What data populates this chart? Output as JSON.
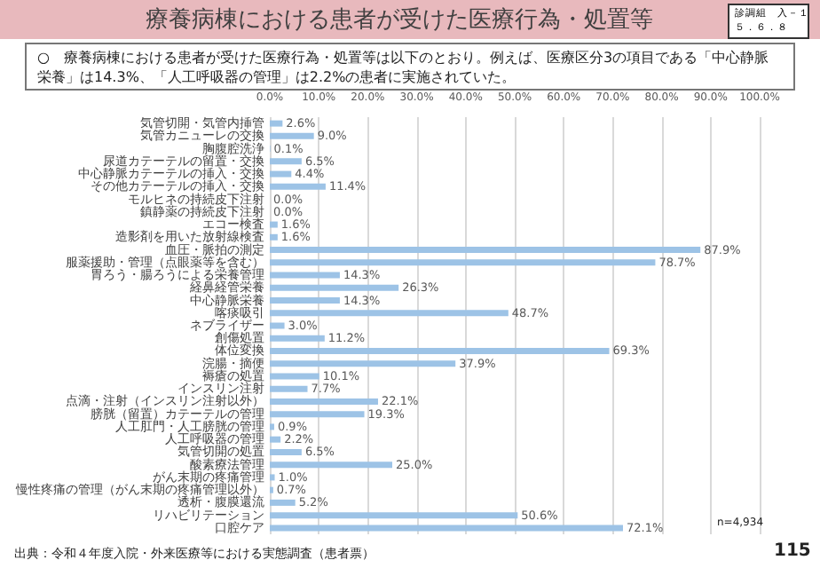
{
  "chart_data": {
    "type": "bar",
    "orientation": "horizontal",
    "title": "療養病棟における患者が受けた医療行為・処置等",
    "annotations": [
      "診調組　入－１",
      "５．６．８",
      "○　療養病棟における患者が受けた医療行為・処置等は以下のとおり。例えば、医療区分3の項目である「中心静脈栄養」は14.3%、「人工呼吸器の管理」は2.2%の患者に実施されていた。",
      "出典：令和４年度入院・外来医療等における実態調査（患者票）",
      "n=4,934",
      "115"
    ],
    "categories": [
      "気管切開・気管内挿管",
      "気管カニューレの交換",
      "胸腹腔洗浄",
      "尿道カテーテルの留置・交換",
      "中心静脈カテーテルの挿入・交換",
      "その他カテーテルの挿入・交換",
      "モルヒネの持続皮下注射",
      "鎮静薬の持続皮下注射",
      "エコー検査",
      "造影剤を用いた放射線検査",
      "血圧・脈拍の測定",
      "服薬援助・管理（点眼薬等を含む）",
      "胃ろう・腸ろうによる栄養管理",
      "経鼻経管栄養",
      "中心静脈栄養",
      "喀痰吸引",
      "ネブライザー",
      "創傷処置",
      "体位変換",
      "浣腸・摘便",
      "褥瘡の処置",
      "インスリン注射",
      "点滴・注射（インスリン注射以外）",
      "膀胱（留置）カテーテルの管理",
      "人工肛門・人工膀胱の管理",
      "人工呼吸器の管理",
      "気管切開の処置",
      "酸素療法管理",
      "がん末期の疼痛管理",
      "慢性疼痛の管理（がん末期の疼痛管理以外）",
      "透析・腹膜還流",
      "リハビリテーション",
      "口腔ケア"
    ],
    "values": [
      2.6,
      9.0,
      0.1,
      6.5,
      4.4,
      11.4,
      0.0,
      0.0,
      1.6,
      1.6,
      87.9,
      78.7,
      14.3,
      26.3,
      14.3,
      48.7,
      3.0,
      11.2,
      69.3,
      37.9,
      10.1,
      7.7,
      22.1,
      19.3,
      0.9,
      2.2,
      6.5,
      25.0,
      1.0,
      0.7,
      5.2,
      50.6,
      72.1
    ],
    "value_labels": [
      "2.6%",
      "9.0%",
      "0.1%",
      "6.5%",
      "4.4%",
      "11.4%",
      "0.0%",
      "0.0%",
      "1.6%",
      "1.6%",
      "87.9%",
      "78.7%",
      "14.3%",
      "26.3%",
      "14.3%",
      "48.7%",
      "3.0%",
      "11.2%",
      "69.3%",
      "37.9%",
      "10.1%",
      "7.7%",
      "22.1%",
      "19.3%",
      "0.9%",
      "2.2%",
      "6.5%",
      "25.0%",
      "1.0%",
      "0.7%",
      "5.2%",
      "50.6%",
      "72.1%"
    ],
    "color": "#9dc3e6",
    "xlim": [
      0,
      100
    ],
    "xticks": [
      {
        "value": 0,
        "label": "0.0%"
      },
      {
        "value": 10,
        "label": "10.0%"
      },
      {
        "value": 20,
        "label": "20.0%"
      },
      {
        "value": 30,
        "label": "30.0%"
      },
      {
        "value": 40,
        "label": "40.0%"
      },
      {
        "value": 50,
        "label": "50.0%"
      },
      {
        "value": 60,
        "label": "60.0%"
      },
      {
        "value": 70,
        "label": "70.0%"
      },
      {
        "value": 80,
        "label": "80.0%"
      },
      {
        "value": 90,
        "label": "90.0%"
      },
      {
        "value": 100,
        "label": "100.0%"
      }
    ],
    "grid": "x"
  }
}
